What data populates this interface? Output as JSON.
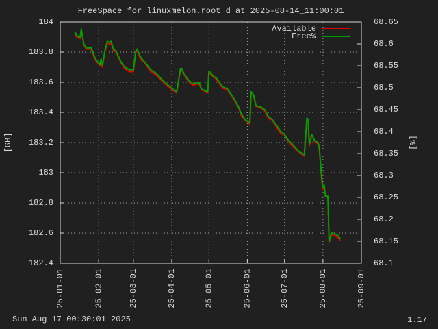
{
  "chart_data": {
    "type": "line",
    "title": "FreeSpace for linuxmelon.root d at 2025-08-14_11:00:01",
    "ylabel": "[GB]",
    "y2label": "[%]",
    "timestamp": "Sun Aug 17 00:30:01 2025",
    "version": "1.17",
    "x": [
      "25-01-13",
      "25-01-14",
      "25-01-17",
      "25-01-18",
      "25-01-20",
      "25-01-22",
      "25-01-26",
      "25-01-29",
      "25-01-31",
      "25-02-02",
      "25-02-03",
      "25-02-04",
      "25-02-06",
      "25-02-08",
      "25-02-10",
      "25-02-11",
      "25-02-13",
      "25-02-15",
      "25-02-19",
      "25-02-22",
      "25-02-26",
      "25-03-01",
      "25-03-03",
      "25-03-04",
      "25-03-07",
      "25-03-10",
      "25-03-15",
      "25-03-19",
      "25-03-24",
      "25-03-29",
      "25-04-03",
      "25-04-05",
      "25-04-08",
      "25-04-09",
      "25-04-11",
      "25-04-15",
      "25-04-18",
      "25-04-23",
      "25-04-25",
      "25-04-30",
      "25-05-01",
      "25-05-04",
      "25-05-07",
      "25-05-12",
      "25-05-16",
      "25-05-20",
      "25-05-25",
      "25-05-27",
      "25-05-30",
      "25-06-02",
      "25-06-03",
      "25-06-04",
      "25-06-06",
      "25-06-08",
      "25-06-12",
      "25-06-15",
      "25-06-18",
      "25-06-21",
      "25-06-24",
      "25-06-28",
      "25-07-01",
      "25-07-03",
      "25-07-08",
      "25-07-12",
      "25-07-17",
      "25-07-19",
      "25-07-20",
      "25-07-21",
      "25-07-23",
      "25-07-25",
      "25-07-28",
      "25-07-29",
      "25-07-31",
      "25-08-01",
      "25-08-02",
      "25-08-03",
      "25-08-05",
      "25-08-06",
      "25-08-08",
      "25-08-11",
      "25-08-13",
      "25-08-15"
    ],
    "series": [
      {
        "name": "Available",
        "color": "#e00000",
        "values": [
          183.93,
          183.9,
          183.89,
          183.95,
          183.85,
          183.82,
          183.82,
          183.75,
          183.73,
          183.71,
          183.75,
          183.7,
          183.8,
          183.86,
          183.85,
          183.86,
          183.81,
          183.8,
          183.73,
          183.69,
          183.67,
          183.67,
          183.8,
          183.81,
          183.75,
          183.73,
          183.67,
          183.65,
          183.61,
          183.57,
          183.54,
          183.53,
          183.68,
          183.68,
          183.65,
          183.6,
          183.58,
          183.59,
          183.55,
          183.53,
          183.66,
          183.64,
          183.62,
          183.56,
          183.55,
          183.5,
          183.43,
          183.38,
          183.35,
          183.33,
          183.32,
          183.53,
          183.51,
          183.44,
          183.43,
          183.41,
          183.36,
          183.35,
          183.31,
          183.26,
          183.25,
          183.22,
          183.17,
          183.14,
          183.11,
          183.35,
          183.34,
          183.18,
          183.25,
          183.21,
          183.19,
          183.16,
          182.95,
          182.89,
          182.91,
          182.84,
          182.84,
          182.54,
          182.59,
          182.58,
          182.57,
          182.55
        ]
      },
      {
        "name": "Free%",
        "color": "#00a000",
        "axis": "y2",
        "values": [
          68.628,
          68.619,
          68.614,
          68.634,
          68.6,
          68.591,
          68.591,
          68.569,
          68.559,
          68.553,
          68.566,
          68.55,
          68.584,
          68.606,
          68.603,
          68.606,
          68.588,
          68.584,
          68.559,
          68.547,
          68.541,
          68.541,
          68.584,
          68.588,
          68.569,
          68.559,
          68.541,
          68.534,
          68.519,
          68.506,
          68.494,
          68.491,
          68.544,
          68.544,
          68.531,
          68.516,
          68.509,
          68.512,
          68.497,
          68.491,
          68.538,
          68.528,
          68.522,
          68.503,
          68.497,
          68.481,
          68.456,
          68.441,
          68.428,
          68.422,
          68.419,
          68.491,
          68.484,
          68.459,
          68.456,
          68.45,
          68.434,
          68.428,
          68.416,
          68.4,
          68.394,
          68.384,
          68.369,
          68.356,
          68.347,
          68.431,
          68.428,
          68.372,
          68.394,
          68.381,
          68.375,
          68.366,
          68.294,
          68.272,
          68.278,
          68.253,
          68.253,
          68.15,
          68.169,
          68.166,
          68.163,
          68.156
        ]
      }
    ],
    "xlim": [
      "25-01-01",
      "25-09-01"
    ],
    "xticks": [
      "25-01-01",
      "25-02-01",
      "25-03-01",
      "25-04-01",
      "25-05-01",
      "25-06-01",
      "25-07-01",
      "25-08-01",
      "25-09-01"
    ],
    "ylim": [
      182.4,
      184
    ],
    "yticks": [
      182.4,
      182.6,
      182.8,
      183,
      183.2,
      183.4,
      183.6,
      183.8,
      184
    ],
    "y2lim": [
      68.1,
      68.65
    ],
    "y2ticks": [
      68.1,
      68.15,
      68.2,
      68.25,
      68.3,
      68.35,
      68.4,
      68.45,
      68.5,
      68.55,
      68.6,
      68.65
    ],
    "grid": true,
    "legend": "top-right"
  }
}
